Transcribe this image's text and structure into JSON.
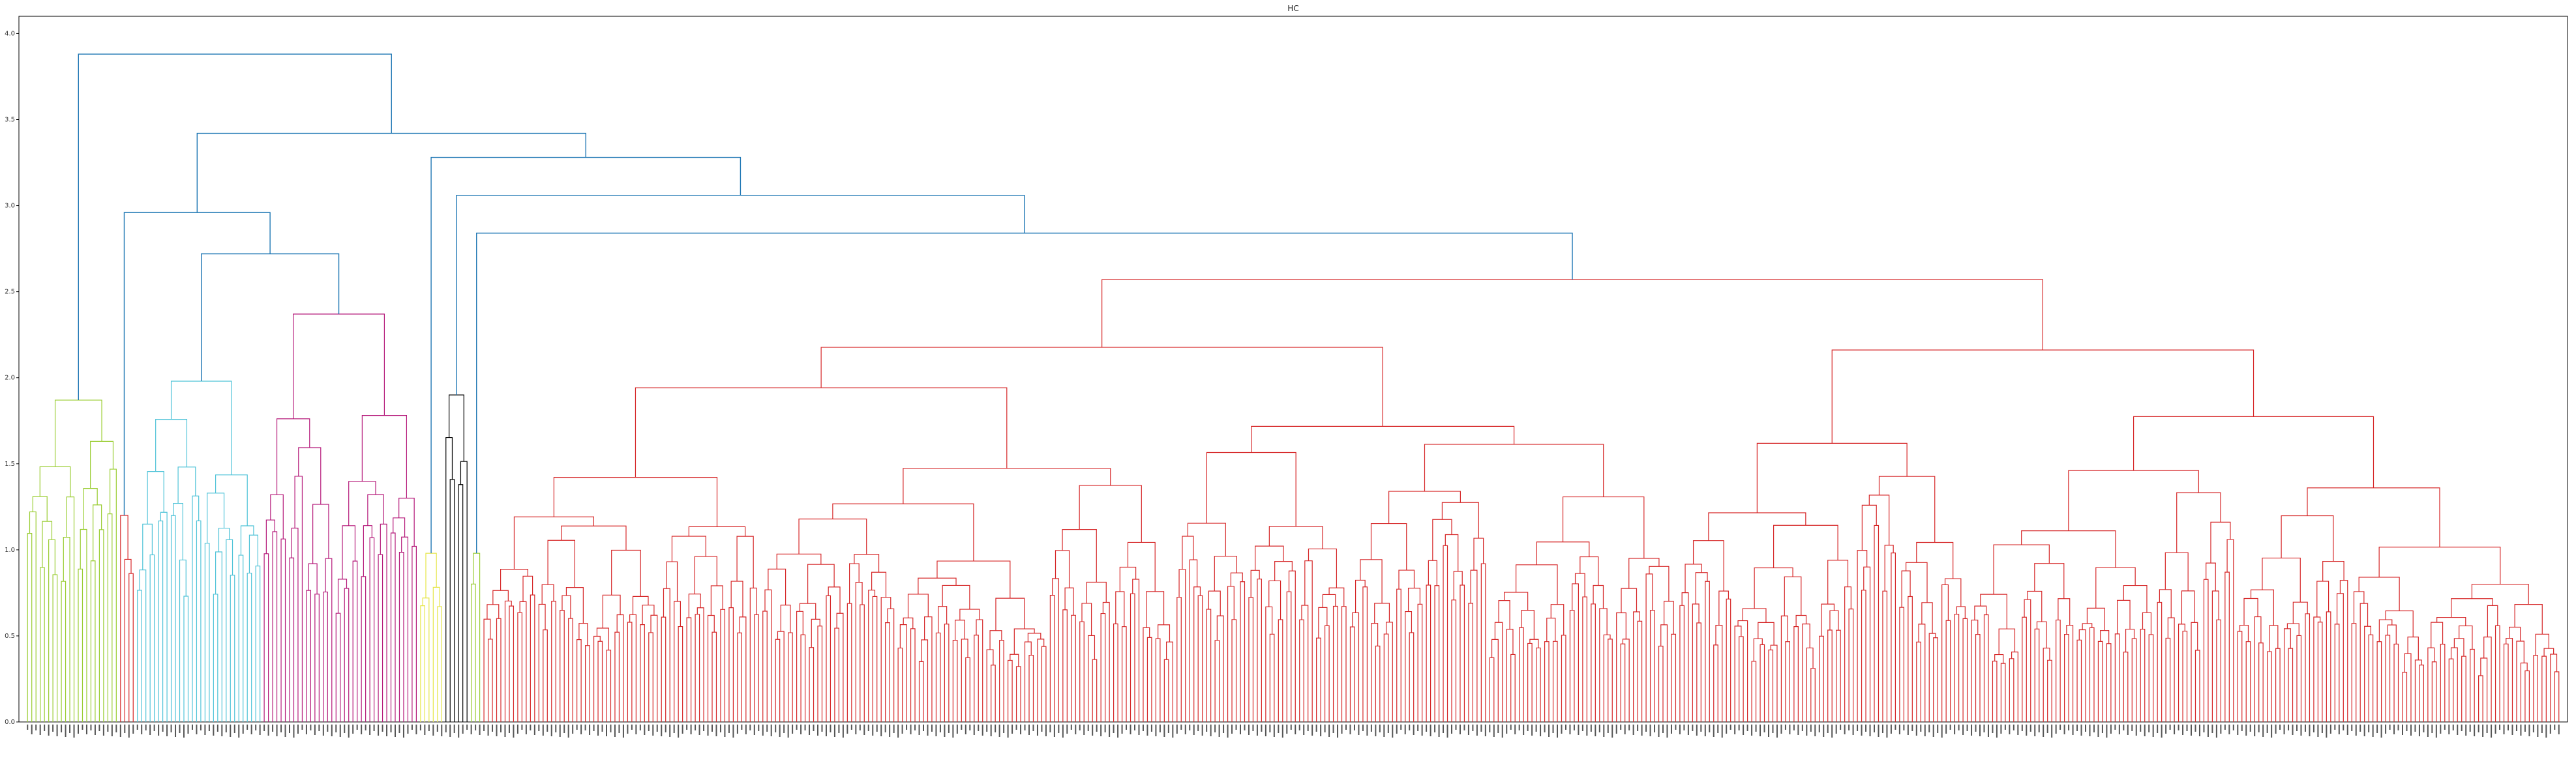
{
  "chart_data": {
    "type": "dendrogram",
    "title": "HC",
    "xlabel": "",
    "ylabel": "",
    "ylim": [
      0,
      4.1
    ],
    "y_ticks": [
      "0.0",
      "0.5",
      "1.0",
      "1.5",
      "2.0",
      "2.5",
      "3.0",
      "3.5",
      "4.0"
    ],
    "grid": false,
    "legend": "none",
    "leaf_count_estimate": 600,
    "leaf_labels": "dense, rotated 90°, illegible at this resolution",
    "clusters": [
      {
        "color": "#9ACD32",
        "leaves": 22,
        "root_height": 1.87
      },
      {
        "color": "#D62728",
        "leaves": 4,
        "root_height": 1.2
      },
      {
        "color": "#4FC3D8",
        "leaves": 30,
        "root_height": 1.98
      },
      {
        "color": "#B5197A",
        "leaves": 37,
        "root_height": 2.37
      },
      {
        "color": "#E6E64A",
        "leaves": 6,
        "root_height": 0.98
      },
      {
        "color": "#000000",
        "leaves": 6,
        "root_height": 1.9
      },
      {
        "color": "#9ACD32",
        "leaves": 3,
        "root_height": 0.98
      },
      {
        "color": "#D62728",
        "leaves": 492,
        "root_height": 2.57
      }
    ],
    "top_merges": [
      {
        "height": 3.88,
        "joins": "green cluster with rest"
      },
      {
        "height": 3.42,
        "joins": "cyan/magenta group with right group"
      },
      {
        "height": 3.28,
        "joins": "yellow/black/red group"
      },
      {
        "height": 2.96,
        "joins": "red pair with cyan/magenta"
      },
      {
        "height": 2.72,
        "joins": "cyan with magenta"
      },
      {
        "height": 3.06,
        "joins": "black with red/green"
      },
      {
        "height": 2.84,
        "joins": "small green with main red"
      }
    ],
    "link_color_above_threshold": "#1F77B4"
  }
}
